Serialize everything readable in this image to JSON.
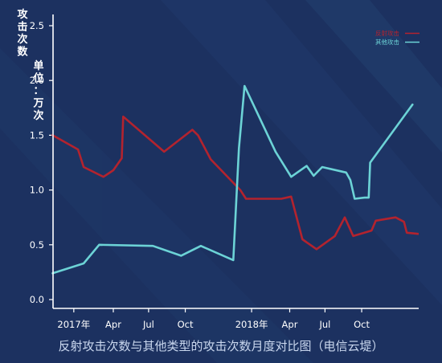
{
  "colors": {
    "background": "#1c3160",
    "plot_background": "#1f3566",
    "axis": "#ffffff",
    "series_reflect": "#b3232e",
    "series_other": "#6cd3d6",
    "caption": "#c9d7ee"
  },
  "caption": "反射攻击次数与其他类型的攻击次数月度对比图（电信云堤）",
  "chart_data": {
    "type": "line",
    "ylabel": [
      "攻击次数",
      "单位：万次"
    ],
    "ylim": [
      0,
      2.5
    ],
    "y_ticks": [
      {
        "value": 0,
        "label": "0.0"
      },
      {
        "value": 0.5,
        "label": "0.5"
      },
      {
        "value": 1.0,
        "label": "1.0"
      },
      {
        "value": 1.5,
        "label": "1.5"
      },
      {
        "value": 2.0,
        "label": "2.0"
      },
      {
        "value": 2.5,
        "label": "2.5"
      }
    ],
    "xlim": [
      0,
      25
    ],
    "x_ticks": [
      {
        "value": 1.3,
        "label": "2017年"
      },
      {
        "value": 4.1,
        "label": "Apr"
      },
      {
        "value": 6.6,
        "label": "Jul"
      },
      {
        "value": 9.2,
        "label": "Oct"
      },
      {
        "value": 13.9,
        "label": "2018年"
      },
      {
        "value": 16.6,
        "label": "Apr"
      },
      {
        "value": 19.1,
        "label": "Jul"
      },
      {
        "value": 21.7,
        "label": "Oct"
      }
    ],
    "legend_position": "top-right",
    "series": [
      {
        "name": "反射攻击",
        "color": "#b3232e",
        "points": [
          [
            -0.2,
            1.5
          ],
          [
            1.6,
            1.37
          ],
          [
            2.0,
            1.21
          ],
          [
            3.4,
            1.12
          ],
          [
            4.1,
            1.18
          ],
          [
            4.7,
            1.29
          ],
          [
            4.8,
            1.67
          ],
          [
            7.7,
            1.35
          ],
          [
            9.7,
            1.55
          ],
          [
            10.1,
            1.5
          ],
          [
            11.0,
            1.28
          ],
          [
            13.1,
            1.0
          ],
          [
            13.5,
            0.92
          ],
          [
            16.0,
            0.92
          ],
          [
            16.7,
            0.94
          ],
          [
            17.5,
            0.55
          ],
          [
            18.5,
            0.46
          ],
          [
            19.8,
            0.58
          ],
          [
            20.5,
            0.75
          ],
          [
            21.1,
            0.58
          ],
          [
            22.4,
            0.63
          ],
          [
            22.7,
            0.72
          ],
          [
            24.1,
            0.75
          ],
          [
            24.7,
            0.71
          ],
          [
            24.9,
            0.61
          ],
          [
            25.7,
            0.6
          ]
        ]
      },
      {
        "name": "其他攻击",
        "color": "#6cd3d6",
        "points": [
          [
            -0.2,
            0.24
          ],
          [
            2.0,
            0.33
          ],
          [
            3.1,
            0.5
          ],
          [
            6.9,
            0.49
          ],
          [
            8.9,
            0.4
          ],
          [
            10.3,
            0.49
          ],
          [
            12.6,
            0.36
          ],
          [
            13.0,
            1.38
          ],
          [
            13.4,
            1.95
          ],
          [
            15.6,
            1.35
          ],
          [
            16.7,
            1.12
          ],
          [
            17.8,
            1.22
          ],
          [
            18.3,
            1.13
          ],
          [
            18.9,
            1.21
          ],
          [
            20.6,
            1.16
          ],
          [
            20.9,
            1.09
          ],
          [
            21.2,
            0.92
          ],
          [
            21.9,
            0.93
          ],
          [
            22.2,
            0.93
          ],
          [
            22.3,
            1.25
          ],
          [
            25.3,
            1.78
          ]
        ]
      }
    ]
  }
}
